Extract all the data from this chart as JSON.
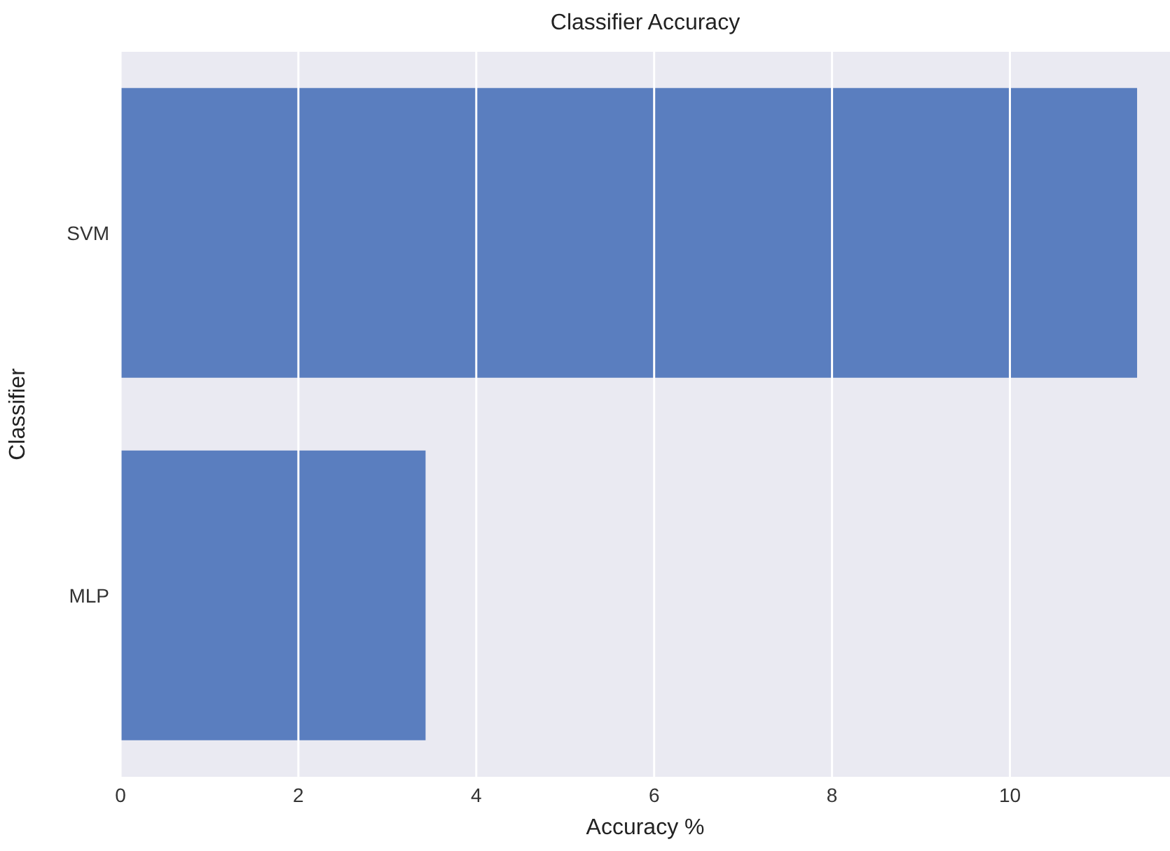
{
  "chart_data": {
    "type": "bar",
    "orientation": "horizontal",
    "title": "Classifier Accuracy",
    "xlabel": "Accuracy %",
    "ylabel": "Classifier",
    "categories": [
      "SVM",
      "MLP"
    ],
    "values": [
      11.43,
      3.43
    ],
    "color": "#5a7ebf",
    "xlim": [
      0,
      11.8
    ],
    "xticks": [
      0,
      2,
      4,
      6,
      8,
      10
    ],
    "grid": "x"
  }
}
